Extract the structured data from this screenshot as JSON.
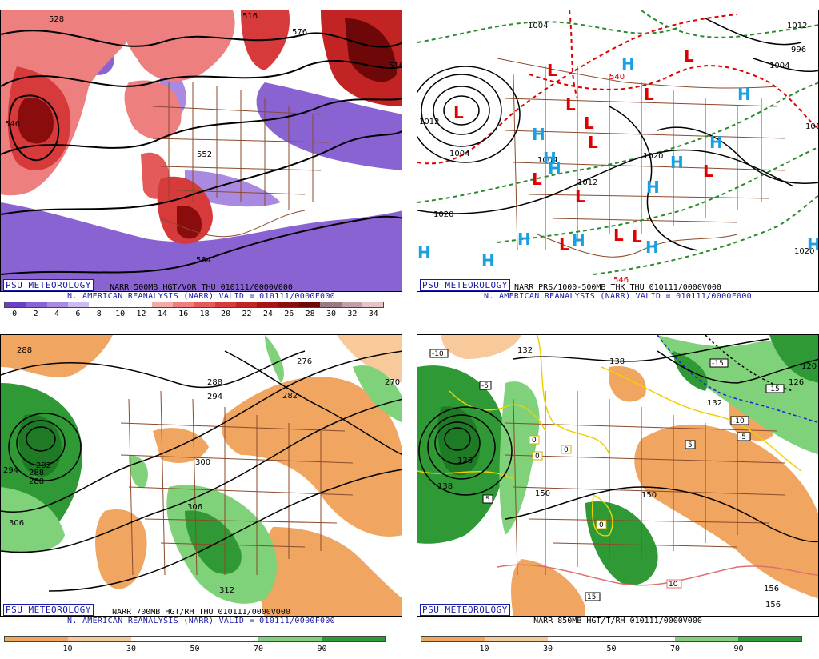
{
  "badge_text": "PSU METEOROLOGY",
  "panels": [
    {
      "id": "vor500",
      "caption_product": "NARR 500MB HGT/VOR THU 010111/0000V000",
      "caption_source": "N. AMERICAN REANALYSIS (NARR) VALID = 010111/0000F000",
      "colorbar": {
        "labels": [
          "0",
          "2",
          "4",
          "6",
          "8",
          "10",
          "12",
          "14",
          "16",
          "18",
          "20",
          "22",
          "24",
          "26",
          "28",
          "30",
          "32",
          "34"
        ],
        "colors": [
          "#6a3fc0",
          "#8a63d2",
          "#a98ae0",
          "#cbbcec",
          "#ffffff",
          "#ffffff",
          "#ffffff",
          "#f5aaaa",
          "#ee7f7f",
          "#e45a5a",
          "#d63a3a",
          "#c22424",
          "#a81414",
          "#8a0c0c",
          "#6e0808",
          "#9a7a82",
          "#c0a0a8",
          "#e7c2c8"
        ]
      },
      "contour_labels": [
        "528",
        "516",
        "516",
        "564",
        "576",
        "552",
        "546",
        "540",
        "540",
        "528",
        "588"
      ]
    },
    {
      "id": "prs",
      "caption_product": "NARR PRS/1000-500MB THK THU 010111/0000V000",
      "caption_source": "N. AMERICAN REANALYSIS (NARR) VALID = 010111/0000F000",
      "contour_labels": [
        "1004",
        "1004",
        "1020",
        "1020",
        "1020",
        "1012",
        "1012",
        "1004",
        "1012",
        "996",
        "1004",
        "1012",
        "540",
        "546",
        "1020",
        "1012"
      ],
      "highs": 14,
      "lows": 13
    },
    {
      "id": "rh700",
      "caption_product": "NARR 700MB HGT/RH THU 010111/0000V000",
      "caption_source": "N. AMERICAN REANALYSIS (NARR) VALID = 010111/0000F000",
      "colorbar": {
        "labels": [
          "10",
          "30",
          "50",
          "70",
          "90"
        ],
        "colors": [
          "#f0a560",
          "#f8c99a",
          "#ffffff",
          "#ffffff",
          "#7fd27a",
          "#2f9a35"
        ]
      },
      "contour_labels": [
        "288",
        "288",
        "282",
        "288",
        "276",
        "270",
        "282",
        "294",
        "300",
        "306",
        "312",
        "294",
        "306",
        "288"
      ]
    },
    {
      "id": "t850",
      "caption_product": "NARR 850MB HGT/T/RH 010111/0000V000",
      "colorbar": {
        "labels": [
          "10",
          "30",
          "50",
          "70",
          "90"
        ],
        "colors": [
          "#f0a560",
          "#f8c99a",
          "#ffffff",
          "#ffffff",
          "#7fd27a",
          "#2f9a35"
        ]
      },
      "contour_labels": [
        "132",
        "138",
        "132",
        "126",
        "138",
        "150",
        "150",
        "156",
        "156",
        "120",
        "126"
      ],
      "temp_labels": [
        "-10",
        "-5",
        "-15",
        "-15",
        "-10",
        "-5",
        "0",
        "0",
        "0",
        "0",
        "5",
        "5",
        "10",
        "15"
      ]
    }
  ]
}
